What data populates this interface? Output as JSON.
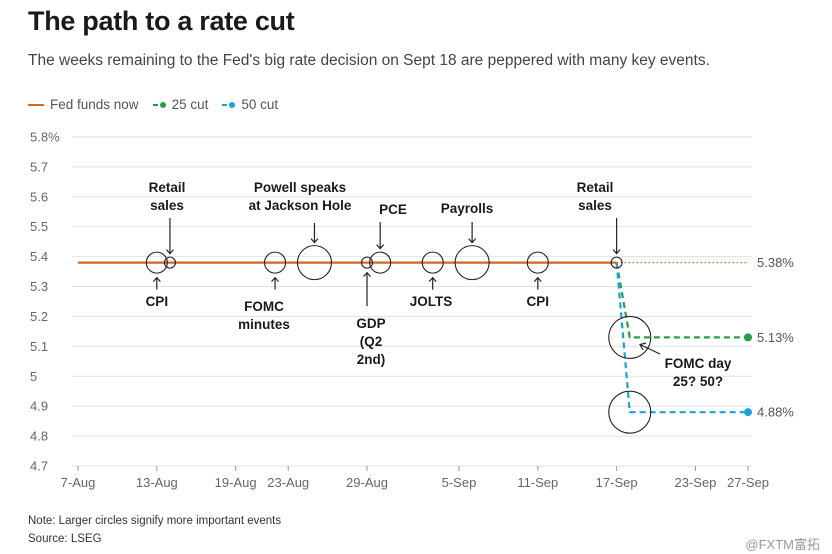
{
  "header": {
    "title": "The path to a rate cut",
    "subtitle": "The weeks remaining to the Fed's big rate decision on Sept 18 are peppered with many key events."
  },
  "legend": [
    {
      "label": "Fed funds now",
      "color": "#d2691e",
      "style": "solid"
    },
    {
      "label": "25 cut",
      "color": "#2a9d4a",
      "style": "dashed-dot"
    },
    {
      "label": "50 cut",
      "color": "#1aa3d9",
      "style": "dashed-dot"
    }
  ],
  "footer": {
    "note": "Note: Larger circles signify more important events",
    "source": "Source: LSEG",
    "watermark": "@FXTM富拓"
  },
  "chart_data": {
    "type": "line",
    "title": "The path to a rate cut",
    "ylim": [
      4.7,
      5.8
    ],
    "yticks": [
      {
        "value": 4.7,
        "label": "4.7"
      },
      {
        "value": 4.8,
        "label": "4.8"
      },
      {
        "value": 4.9,
        "label": "4.9"
      },
      {
        "value": 5.0,
        "label": "5"
      },
      {
        "value": 5.1,
        "label": "5.1"
      },
      {
        "value": 5.2,
        "label": "5.2"
      },
      {
        "value": 5.3,
        "label": "5.3"
      },
      {
        "value": 5.4,
        "label": "5.4"
      },
      {
        "value": 5.5,
        "label": "5.5"
      },
      {
        "value": 5.6,
        "label": "5.6"
      },
      {
        "value": 5.7,
        "label": "5.7"
      },
      {
        "value": 5.8,
        "label": "5.8%"
      }
    ],
    "xlim": [
      "2024-08-07",
      "2024-09-27"
    ],
    "xticks": [
      {
        "date": "2024-08-07",
        "label": "7-Aug"
      },
      {
        "date": "2024-08-13",
        "label": "13-Aug"
      },
      {
        "date": "2024-08-19",
        "label": "19-Aug"
      },
      {
        "date": "2024-08-23",
        "label": "23-Aug"
      },
      {
        "date": "2024-08-29",
        "label": "29-Aug"
      },
      {
        "date": "2024-09-05",
        "label": "5-Sep"
      },
      {
        "date": "2024-09-11",
        "label": "11-Sep"
      },
      {
        "date": "2024-09-17",
        "label": "17-Sep"
      },
      {
        "date": "2024-09-23",
        "label": "23-Sep"
      },
      {
        "date": "2024-09-27",
        "label": "27-Sep"
      }
    ],
    "series": [
      {
        "name": "Fed funds now",
        "color": "#d2691e",
        "style": "solid",
        "points": [
          [
            "2024-08-07",
            5.38
          ],
          [
            "2024-09-17",
            5.38
          ]
        ],
        "extension": [
          [
            "2024-09-17",
            5.38
          ],
          [
            "2024-09-27",
            5.38
          ]
        ],
        "end_label": "5.38%"
      },
      {
        "name": "25 cut",
        "color": "#2a9d4a",
        "style": "dashed",
        "points": [
          [
            "2024-09-17",
            5.38
          ],
          [
            "2024-09-18",
            5.13
          ],
          [
            "2024-09-27",
            5.13
          ]
        ],
        "end_label": "5.13%"
      },
      {
        "name": "50 cut",
        "color": "#1aa3d9",
        "style": "dashed",
        "points": [
          [
            "2024-09-17",
            5.38
          ],
          [
            "2024-09-18",
            4.88
          ],
          [
            "2024-09-27",
            4.88
          ]
        ],
        "end_label": "4.88%"
      }
    ],
    "events": [
      {
        "name": "CPI",
        "date": "2024-08-13",
        "value": 5.38,
        "size": "medium"
      },
      {
        "name": "Retail sales",
        "date": "2024-08-14",
        "value": 5.38,
        "size": "small"
      },
      {
        "name": "FOMC minutes",
        "date": "2024-08-22",
        "value": 5.38,
        "size": "medium"
      },
      {
        "name": "Powell speaks at Jackson Hole",
        "date": "2024-08-25",
        "value": 5.38,
        "size": "large"
      },
      {
        "name": "GDP (Q2 2nd)",
        "date": "2024-08-29",
        "value": 5.38,
        "size": "small"
      },
      {
        "name": "PCE",
        "date": "2024-08-30",
        "value": 5.38,
        "size": "medium"
      },
      {
        "name": "JOLTS",
        "date": "2024-09-03",
        "value": 5.38,
        "size": "medium"
      },
      {
        "name": "Payrolls",
        "date": "2024-09-06",
        "value": 5.38,
        "size": "large"
      },
      {
        "name": "CPI",
        "date": "2024-09-11",
        "value": 5.38,
        "size": "medium"
      },
      {
        "name": "Retail sales",
        "date": "2024-09-17",
        "value": 5.38,
        "size": "small"
      },
      {
        "name": "FOMC day 25? 50? (25 cut)",
        "date": "2024-09-18",
        "value": 5.13,
        "size": "large"
      },
      {
        "name": "FOMC day 25? 50? (50 cut)",
        "date": "2024-09-18",
        "value": 4.88,
        "size": "large"
      }
    ],
    "annotations": [
      {
        "id": "retail1",
        "lines": [
          "Retail",
          "sales"
        ]
      },
      {
        "id": "powell",
        "lines": [
          "Powell speaks",
          "at Jackson Hole"
        ]
      },
      {
        "id": "pce",
        "lines": [
          "PCE"
        ]
      },
      {
        "id": "payrolls",
        "lines": [
          "Payrolls"
        ]
      },
      {
        "id": "retail2",
        "lines": [
          "Retail",
          "sales"
        ]
      },
      {
        "id": "cpi1",
        "lines": [
          "CPI"
        ]
      },
      {
        "id": "fomcmin",
        "lines": [
          "FOMC",
          "minutes"
        ]
      },
      {
        "id": "gdp",
        "lines": [
          "GDP",
          "(Q2",
          "2nd)"
        ]
      },
      {
        "id": "jolts",
        "lines": [
          "JOLTS"
        ]
      },
      {
        "id": "cpi2",
        "lines": [
          "CPI"
        ]
      },
      {
        "id": "fomcday",
        "lines": [
          "FOMC day",
          "25? 50?"
        ]
      }
    ],
    "grid": true
  }
}
